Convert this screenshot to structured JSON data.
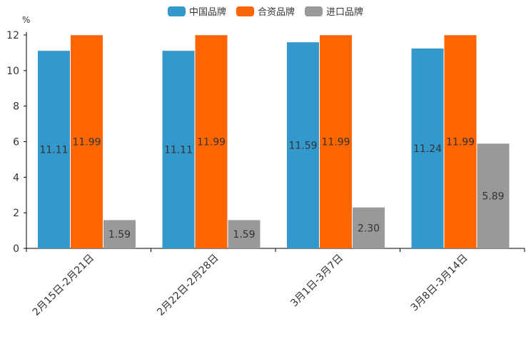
{
  "chart_data": {
    "type": "bar",
    "unit_label": "%",
    "categories": [
      "2月15日-2月21日",
      "2月22日-2月28日",
      "3月1日-3月7日",
      "3月8日-3月14日"
    ],
    "series": [
      {
        "name": "中国品牌",
        "color": "#3399cc",
        "values": [
          11.11,
          11.11,
          11.59,
          11.24
        ],
        "labels": [
          "11.11",
          "11.11",
          "11.59",
          "11.24"
        ]
      },
      {
        "name": "合资品牌",
        "color": "#ff6600",
        "values": [
          11.99,
          11.99,
          11.99,
          11.99
        ],
        "labels": [
          "11.99",
          "11.99",
          "11.99",
          "11.99"
        ]
      },
      {
        "name": "进口品牌",
        "color": "#999999",
        "values": [
          1.59,
          1.59,
          2.3,
          5.89
        ],
        "labels": [
          "1.59",
          "1.59",
          "2.30",
          "5.89"
        ]
      }
    ],
    "ylim": [
      0,
      12
    ],
    "yticks": [
      0,
      2,
      4,
      6,
      8,
      10,
      12
    ],
    "legend_position": "top-center",
    "grid": false
  }
}
